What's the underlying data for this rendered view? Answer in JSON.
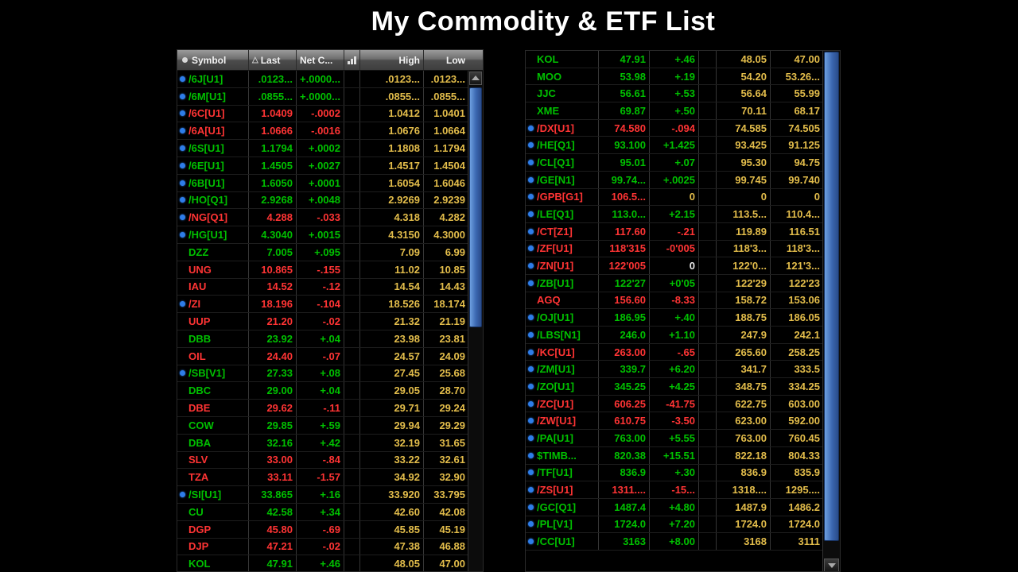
{
  "title": "My Commodity & ETF List",
  "colors": {
    "up": "#00c000",
    "down": "#ff3434",
    "high_low": "#e3bd4b",
    "flat": "#e8e8e8",
    "dot": "#2e7de9"
  },
  "left_panel": {
    "headers": {
      "symbol": "Symbol",
      "sort_indicator": "△",
      "last": "Last",
      "net": "Net C...",
      "high": "High",
      "low": "Low"
    },
    "rows": [
      {
        "symbol": "/6J[U1]",
        "last": ".0123...",
        "net": "+.0000...",
        "high": ".0123...",
        "low": ".0123...",
        "dir": "up",
        "dot": true
      },
      {
        "symbol": "/6M[U1]",
        "last": ".0855...",
        "net": "+.0000...",
        "high": ".0855...",
        "low": ".0855...",
        "dir": "up",
        "dot": true
      },
      {
        "symbol": "/6C[U1]",
        "last": "1.0409",
        "net": "-.0002",
        "high": "1.0412",
        "low": "1.0401",
        "dir": "down",
        "dot": true
      },
      {
        "symbol": "/6A[U1]",
        "last": "1.0666",
        "net": "-.0016",
        "high": "1.0676",
        "low": "1.0664",
        "dir": "down",
        "dot": true
      },
      {
        "symbol": "/6S[U1]",
        "last": "1.1794",
        "net": "+.0002",
        "high": "1.1808",
        "low": "1.1794",
        "dir": "up",
        "dot": true
      },
      {
        "symbol": "/6E[U1]",
        "last": "1.4505",
        "net": "+.0027",
        "high": "1.4517",
        "low": "1.4504",
        "dir": "up",
        "dot": true
      },
      {
        "symbol": "/6B[U1]",
        "last": "1.6050",
        "net": "+.0001",
        "high": "1.6054",
        "low": "1.6046",
        "dir": "up",
        "dot": true
      },
      {
        "symbol": "/HO[Q1]",
        "last": "2.9268",
        "net": "+.0048",
        "high": "2.9269",
        "low": "2.9239",
        "dir": "up",
        "dot": true
      },
      {
        "symbol": "/NG[Q1]",
        "last": "4.288",
        "net": "-.033",
        "high": "4.318",
        "low": "4.282",
        "dir": "down",
        "dot": true
      },
      {
        "symbol": "/HG[U1]",
        "last": "4.3040",
        "net": "+.0015",
        "high": "4.3150",
        "low": "4.3000",
        "dir": "up",
        "dot": true
      },
      {
        "symbol": "DZZ",
        "last": "7.005",
        "net": "+.095",
        "high": "7.09",
        "low": "6.99",
        "dir": "up",
        "dot": false
      },
      {
        "symbol": "UNG",
        "last": "10.865",
        "net": "-.155",
        "high": "11.02",
        "low": "10.85",
        "dir": "down",
        "dot": false
      },
      {
        "symbol": "IAU",
        "last": "14.52",
        "net": "-.12",
        "high": "14.54",
        "low": "14.43",
        "dir": "down",
        "dot": false
      },
      {
        "symbol": "/ZI",
        "last": "18.196",
        "net": "-.104",
        "high": "18.526",
        "low": "18.174",
        "dir": "down",
        "dot": true
      },
      {
        "symbol": "UUP",
        "last": "21.20",
        "net": "-.02",
        "high": "21.32",
        "low": "21.19",
        "dir": "down",
        "dot": false
      },
      {
        "symbol": "DBB",
        "last": "23.92",
        "net": "+.04",
        "high": "23.98",
        "low": "23.81",
        "dir": "up",
        "dot": false
      },
      {
        "symbol": "OIL",
        "last": "24.40",
        "net": "-.07",
        "high": "24.57",
        "low": "24.09",
        "dir": "down",
        "dot": false
      },
      {
        "symbol": "/SB[V1]",
        "last": "27.33",
        "net": "+.08",
        "high": "27.45",
        "low": "25.68",
        "dir": "up",
        "dot": true
      },
      {
        "symbol": "DBC",
        "last": "29.00",
        "net": "+.04",
        "high": "29.05",
        "low": "28.70",
        "dir": "up",
        "dot": false
      },
      {
        "symbol": "DBE",
        "last": "29.62",
        "net": "-.11",
        "high": "29.71",
        "low": "29.24",
        "dir": "down",
        "dot": false
      },
      {
        "symbol": "COW",
        "last": "29.85",
        "net": "+.59",
        "high": "29.94",
        "low": "29.29",
        "dir": "up",
        "dot": false
      },
      {
        "symbol": "DBA",
        "last": "32.16",
        "net": "+.42",
        "high": "32.19",
        "low": "31.65",
        "dir": "up",
        "dot": false
      },
      {
        "symbol": "SLV",
        "last": "33.00",
        "net": "-.84",
        "high": "33.22",
        "low": "32.61",
        "dir": "down",
        "dot": false
      },
      {
        "symbol": "TZA",
        "last": "33.11",
        "net": "-1.57",
        "high": "34.92",
        "low": "32.90",
        "dir": "down",
        "dot": false
      },
      {
        "symbol": "/SI[U1]",
        "last": "33.865",
        "net": "+.16",
        "high": "33.920",
        "low": "33.795",
        "dir": "up",
        "dot": true
      },
      {
        "symbol": "CU",
        "last": "42.58",
        "net": "+.34",
        "high": "42.60",
        "low": "42.08",
        "dir": "up",
        "dot": false
      },
      {
        "symbol": "DGP",
        "last": "45.80",
        "net": "-.69",
        "high": "45.85",
        "low": "45.19",
        "dir": "down",
        "dot": false
      },
      {
        "symbol": "DJP",
        "last": "47.21",
        "net": "-.02",
        "high": "47.38",
        "low": "46.88",
        "dir": "down",
        "dot": false
      },
      {
        "symbol": "KOL",
        "last": "47.91",
        "net": "+.46",
        "high": "48.05",
        "low": "47.00",
        "dir": "up",
        "dot": false
      }
    ]
  },
  "right_panel": {
    "rows": [
      {
        "symbol": "KOL",
        "last": "47.91",
        "net": "+.46",
        "high": "48.05",
        "low": "47.00",
        "dir": "up",
        "dot": false
      },
      {
        "symbol": "MOO",
        "last": "53.98",
        "net": "+.19",
        "high": "54.20",
        "low": "53.26...",
        "dir": "up",
        "dot": false
      },
      {
        "symbol": "JJC",
        "last": "56.61",
        "net": "+.53",
        "high": "56.64",
        "low": "55.99",
        "dir": "up",
        "dot": false
      },
      {
        "symbol": "XME",
        "last": "69.87",
        "net": "+.50",
        "high": "70.11",
        "low": "68.17",
        "dir": "up",
        "dot": false
      },
      {
        "symbol": "/DX[U1]",
        "last": "74.580",
        "net": "-.094",
        "high": "74.585",
        "low": "74.505",
        "dir": "down",
        "dot": true
      },
      {
        "symbol": "/HE[Q1]",
        "last": "93.100",
        "net": "+1.425",
        "high": "93.425",
        "low": "91.125",
        "dir": "up",
        "dot": true
      },
      {
        "symbol": "/CL[Q1]",
        "last": "95.01",
        "net": "+.07",
        "high": "95.30",
        "low": "94.75",
        "dir": "up",
        "dot": true
      },
      {
        "symbol": "/GE[N1]",
        "last": "99.74...",
        "net": "+.0025",
        "high": "99.745",
        "low": "99.740",
        "dir": "up",
        "dot": true
      },
      {
        "symbol": "/GPB[G1]",
        "last": "106.5...",
        "net": "0",
        "high": "0",
        "low": "0",
        "dir": "down",
        "dot": true,
        "net_dir": "hl"
      },
      {
        "symbol": "/LE[Q1]",
        "last": "113.0...",
        "net": "+2.15",
        "high": "113.5...",
        "low": "110.4...",
        "dir": "up",
        "dot": true
      },
      {
        "symbol": "/CT[Z1]",
        "last": "117.60",
        "net": "-.21",
        "high": "119.89",
        "low": "116.51",
        "dir": "down",
        "dot": true
      },
      {
        "symbol": "/ZF[U1]",
        "last": "118'315",
        "net": "-0'005",
        "high": "118'3...",
        "low": "118'3...",
        "dir": "down",
        "dot": true
      },
      {
        "symbol": "/ZN[U1]",
        "last": "122'005",
        "net": "0",
        "high": "122'0...",
        "low": "121'3...",
        "dir": "down",
        "dot": true,
        "net_dir": "flat"
      },
      {
        "symbol": "/ZB[U1]",
        "last": "122'27",
        "net": "+0'05",
        "high": "122'29",
        "low": "122'23",
        "dir": "up",
        "dot": true
      },
      {
        "symbol": "AGQ",
        "last": "156.60",
        "net": "-8.33",
        "high": "158.72",
        "low": "153.06",
        "dir": "down",
        "dot": false
      },
      {
        "symbol": "/OJ[U1]",
        "last": "186.95",
        "net": "+.40",
        "high": "188.75",
        "low": "186.05",
        "dir": "up",
        "dot": true
      },
      {
        "symbol": "/LBS[N1]",
        "last": "246.0",
        "net": "+1.10",
        "high": "247.9",
        "low": "242.1",
        "dir": "up",
        "dot": true
      },
      {
        "symbol": "/KC[U1]",
        "last": "263.00",
        "net": "-.65",
        "high": "265.60",
        "low": "258.25",
        "dir": "down",
        "dot": true
      },
      {
        "symbol": "/ZM[U1]",
        "last": "339.7",
        "net": "+6.20",
        "high": "341.7",
        "low": "333.5",
        "dir": "up",
        "dot": true
      },
      {
        "symbol": "/ZO[U1]",
        "last": "345.25",
        "net": "+4.25",
        "high": "348.75",
        "low": "334.25",
        "dir": "up",
        "dot": true
      },
      {
        "symbol": "/ZC[U1]",
        "last": "606.25",
        "net": "-41.75",
        "high": "622.75",
        "low": "603.00",
        "dir": "down",
        "dot": true
      },
      {
        "symbol": "/ZW[U1]",
        "last": "610.75",
        "net": "-3.50",
        "high": "623.00",
        "low": "592.00",
        "dir": "down",
        "dot": true
      },
      {
        "symbol": "/PA[U1]",
        "last": "763.00",
        "net": "+5.55",
        "high": "763.00",
        "low": "760.45",
        "dir": "up",
        "dot": true
      },
      {
        "symbol": "$TIMB...",
        "last": "820.38",
        "net": "+15.51",
        "high": "822.18",
        "low": "804.33",
        "dir": "up",
        "dot": true
      },
      {
        "symbol": "/TF[U1]",
        "last": "836.9",
        "net": "+.30",
        "high": "836.9",
        "low": "835.9",
        "dir": "up",
        "dot": true
      },
      {
        "symbol": "/ZS[U1]",
        "last": "1311....",
        "net": "-15...",
        "high": "1318....",
        "low": "1295....",
        "dir": "down",
        "dot": true
      },
      {
        "symbol": "/GC[Q1]",
        "last": "1487.4",
        "net": "+4.80",
        "high": "1487.9",
        "low": "1486.2",
        "dir": "up",
        "dot": true
      },
      {
        "symbol": "/PL[V1]",
        "last": "1724.0",
        "net": "+7.20",
        "high": "1724.0",
        "low": "1724.0",
        "dir": "up",
        "dot": true
      },
      {
        "symbol": "/CC[U1]",
        "last": "3163",
        "net": "+8.00",
        "high": "3168",
        "low": "3111",
        "dir": "up",
        "dot": true
      }
    ]
  }
}
